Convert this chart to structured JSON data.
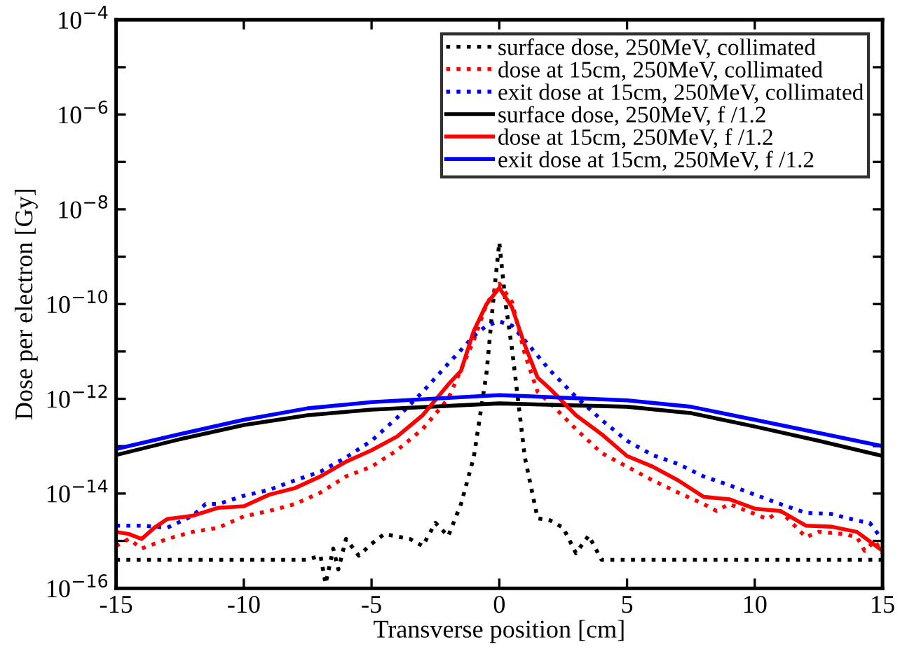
{
  "chart_data": {
    "type": "line",
    "xlabel": "Transverse position [cm]",
    "ylabel": "Dose per electron [Gy]",
    "log": "y",
    "xlim": [
      -15,
      15
    ],
    "xticks": [
      -15,
      -10,
      -5,
      0,
      5,
      10,
      15
    ],
    "ylim": [
      1e-16,
      0.0001
    ],
    "yticks": [
      {
        "value": 1e-16,
        "label": "10$^{−16}$"
      },
      {
        "value": 1e-15,
        "label": null
      },
      {
        "value": 1e-14,
        "label": "10$^{−14}$"
      },
      {
        "value": 1e-13,
        "label": null
      },
      {
        "value": 1e-12,
        "label": "10$^{−12}$"
      },
      {
        "value": 1e-11,
        "label": null
      },
      {
        "value": 1e-10,
        "label": "10$^{−10}$"
      },
      {
        "value": 1e-09,
        "label": null
      },
      {
        "value": 1e-08,
        "label": "10$^{−8}$"
      },
      {
        "value": 1e-07,
        "label": null
      },
      {
        "value": 1e-06,
        "label": "10$^{−6}$"
      },
      {
        "value": 1e-05,
        "label": null
      },
      {
        "value": 0.0001,
        "label": "10$^{−4}$"
      }
    ],
    "grid": false,
    "legend": "top right",
    "series": [
      {
        "name": "surface dose, 250MeV, collimated",
        "color": "#000000",
        "line_style": "dotted",
        "x": [
          -15,
          -7.5,
          -7,
          -6.8,
          -6.5,
          -6.3,
          -6,
          -5.5,
          -5,
          -4.5,
          -3.5,
          -3,
          -2.5,
          -2,
          -1.5,
          -1,
          -0.5,
          -0.25,
          0,
          0.25,
          0.5,
          1,
          1.5,
          2,
          2.5,
          3,
          3.5,
          4,
          15
        ],
        "values": [
          4e-16,
          4e-16,
          4.9e-16,
          1.25e-16,
          6.9e-16,
          2.5e-16,
          1.1e-15,
          4.9e-16,
          8.7e-16,
          1.4e-15,
          1.1e-15,
          7.8e-16,
          2.4e-15,
          1.26e-15,
          6e-15,
          5.8e-14,
          3.5e-12,
          1e-10,
          2e-09,
          1e-10,
          1.1e-11,
          5.8e-14,
          3e-15,
          2.7e-15,
          1.9e-15,
          5.5e-16,
          1.3e-15,
          4e-16,
          4e-16
        ]
      },
      {
        "name": "dose at 15cm, 250MeV, collimated",
        "color": "#ff0000",
        "line_style": "dotted",
        "x": [
          -15,
          -14.5,
          -14,
          -13,
          -12,
          -11,
          -10,
          -9,
          -8,
          -7,
          -6,
          -5,
          -4,
          -3,
          -2,
          -1,
          -0.5,
          0,
          0.5,
          1,
          1.5,
          2,
          3,
          4,
          5,
          6,
          7,
          8,
          8.5,
          9,
          10,
          10.5,
          11,
          12,
          12.5,
          13.5,
          14,
          14.3,
          14.7,
          15
        ],
        "values": [
          7.8e-16,
          1.1e-15,
          6.9e-16,
          1.1e-15,
          1.55e-15,
          1.9e-15,
          3.3e-15,
          4.3e-15,
          6e-15,
          1.05e-14,
          2.3e-14,
          3.7e-14,
          8.2e-14,
          2.3e-13,
          1e-12,
          1.7e-11,
          1e-10,
          2.7e-10,
          1.1e-10,
          8.7e-12,
          1.4e-12,
          8e-13,
          2.3e-13,
          7.2e-14,
          3.7e-14,
          1.9e-14,
          1.05e-14,
          6e-15,
          4.3e-15,
          6e-15,
          3.7e-15,
          2.9e-15,
          4.3e-15,
          1.2e-15,
          1.55e-15,
          1.4e-15,
          1.2e-15,
          6.2e-16,
          1e-15,
          5.5e-16
        ]
      },
      {
        "name": "exit dose at 15cm, 250MeV, collimated",
        "color": "#0000ff",
        "line_style": "dotted",
        "x": [
          -15,
          -14,
          -13,
          -12,
          -11.5,
          -11,
          -10,
          -9,
          -8,
          -7,
          -6,
          -5,
          -4,
          -3,
          -2,
          -1,
          -0.5,
          0,
          0.5,
          1,
          2,
          3,
          4,
          5,
          6,
          7,
          8,
          9,
          10,
          11,
          12,
          13,
          14,
          14.5,
          15
        ],
        "values": [
          2.1e-15,
          2.1e-15,
          1.9e-15,
          3.4e-15,
          6e-15,
          6e-15,
          9e-15,
          1.2e-14,
          1.9e-14,
          2.9e-14,
          5.8e-14,
          1.3e-13,
          4e-13,
          1.4e-12,
          5.5e-12,
          2.1e-11,
          3.5e-11,
          4.3e-11,
          3.5e-11,
          1.7e-11,
          3.9e-12,
          1.1e-12,
          3.6e-13,
          1.3e-13,
          6.5e-14,
          4.2e-14,
          2.3e-14,
          1.5e-14,
          9.5e-15,
          6e-15,
          3.9e-15,
          3.7e-15,
          2.7e-15,
          2.4e-15,
          1.05e-15
        ]
      },
      {
        "name": "surface dose, 250MeV, f /1.2",
        "color": "#000000",
        "line_style": "solid",
        "x": [
          -15,
          -12.5,
          -10,
          -7.5,
          -5,
          0,
          5,
          7.5,
          10,
          12.5,
          15
        ],
        "values": [
          6.5e-14,
          1.4e-13,
          2.8e-13,
          4.5e-13,
          5.9e-13,
          8e-13,
          6.8e-13,
          5e-13,
          2.6e-13,
          1.3e-13,
          6.2e-14
        ]
      },
      {
        "name": "dose at 15cm, 250MeV, f /1.2",
        "color": "#ff0000",
        "line_style": "solid",
        "x": [
          -15,
          -14.5,
          -14,
          -13.5,
          -13,
          -12,
          -11,
          -10,
          -9,
          -8,
          -7,
          -6,
          -5,
          -4,
          -3,
          -2,
          -1.5,
          -1,
          -0.5,
          0,
          0.5,
          1,
          1.5,
          2,
          3,
          4,
          5,
          6,
          7,
          8,
          9,
          10,
          11,
          12,
          13,
          14,
          15
        ],
        "values": [
          1.55e-15,
          1.4e-15,
          1.1e-15,
          1.9e-15,
          2.9e-15,
          3.4e-15,
          5e-15,
          5.4e-15,
          9.5e-15,
          1.3e-14,
          2.3e-14,
          4.7e-14,
          8.2e-14,
          1.6e-13,
          4.5e-13,
          2e-12,
          3.9e-12,
          2.7e-11,
          1e-10,
          2.2e-10,
          8.5e-11,
          1.35e-11,
          2.8e-12,
          1.6e-12,
          4.5e-13,
          1.8e-13,
          6.2e-14,
          3.7e-14,
          1.9e-14,
          8.5e-15,
          7.6e-15,
          4.8e-15,
          4.3e-15,
          2.1e-15,
          2e-15,
          1.55e-15,
          6.2e-16
        ]
      },
      {
        "name": "exit dose at 15cm, 250MeV, f /1.2",
        "color": "#0000ff",
        "line_style": "solid",
        "x": [
          -15,
          -12.5,
          -10,
          -7.5,
          -5,
          0,
          5,
          7.5,
          10,
          12.5,
          15
        ],
        "values": [
          8.7e-14,
          1.8e-13,
          3.6e-13,
          6.3e-13,
          8.5e-13,
          1.2e-12,
          9.3e-13,
          6.8e-13,
          3.6e-13,
          1.9e-13,
          1e-13
        ]
      }
    ]
  }
}
